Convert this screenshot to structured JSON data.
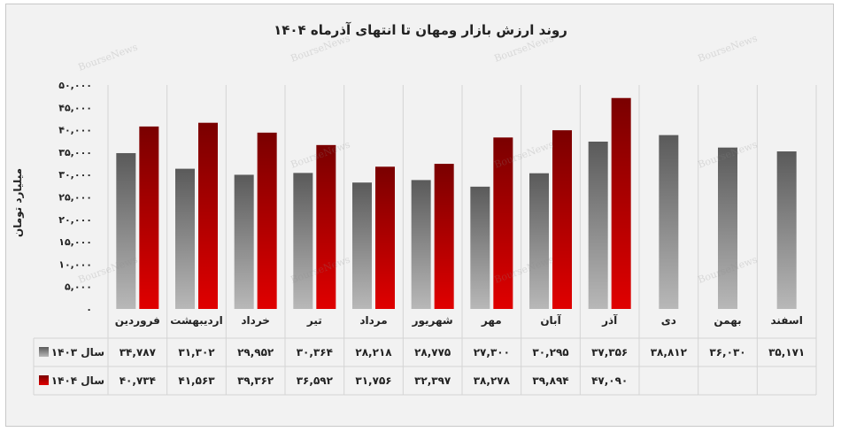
{
  "chart_data": {
    "type": "bar",
    "title": "روند ارزش بازار ومهان تا انتهای آذرماه ۱۴۰۴",
    "ylabel": "میلیارد تومان",
    "xlabel": "",
    "ylim": [
      0,
      50000
    ],
    "yticks": [
      "۰",
      "۵,۰۰۰",
      "۱۰,۰۰۰",
      "۱۵,۰۰۰",
      "۲۰,۰۰۰",
      "۲۵,۰۰۰",
      "۳۰,۰۰۰",
      "۳۵,۰۰۰",
      "۴۰,۰۰۰",
      "۴۵,۰۰۰",
      "۵۰,۰۰۰"
    ],
    "categories": [
      "فروردین",
      "اردیبهشت",
      "خرداد",
      "تیر",
      "مرداد",
      "شهریور",
      "مهر",
      "آبان",
      "آذر",
      "دی",
      "بهمن",
      "اسفند"
    ],
    "series": [
      {
        "name": "سال ۱۴۰۳",
        "color": "#7a7a7a",
        "values": [
          34787,
          31302,
          29952,
          30364,
          28218,
          28775,
          27300,
          30295,
          37356,
          38812,
          36030,
          35171
        ],
        "labels": [
          "۳۴,۷۸۷",
          "۳۱,۳۰۲",
          "۲۹,۹۵۲",
          "۳۰,۳۶۴",
          "۲۸,۲۱۸",
          "۲۸,۷۷۵",
          "۲۷,۳۰۰",
          "۳۰,۲۹۵",
          "۳۷,۳۵۶",
          "۳۸,۸۱۲",
          "۳۶,۰۳۰",
          "۳۵,۱۷۱"
        ]
      },
      {
        "name": "سال ۱۴۰۴",
        "color": "#b30000",
        "values": [
          40734,
          41563,
          39362,
          36592,
          31756,
          32397,
          38278,
          39894,
          47090,
          null,
          null,
          null
        ],
        "labels": [
          "۴۰,۷۳۴",
          "۴۱,۵۶۳",
          "۳۹,۳۶۲",
          "۳۶,۵۹۲",
          "۳۱,۷۵۶",
          "۳۲,۳۹۷",
          "۳۸,۲۷۸",
          "۳۹,۸۹۴",
          "۴۷,۰۹۰",
          "",
          "",
          ""
        ]
      }
    ],
    "grid": true,
    "legend": "data-table"
  },
  "watermark": "BourseNews"
}
